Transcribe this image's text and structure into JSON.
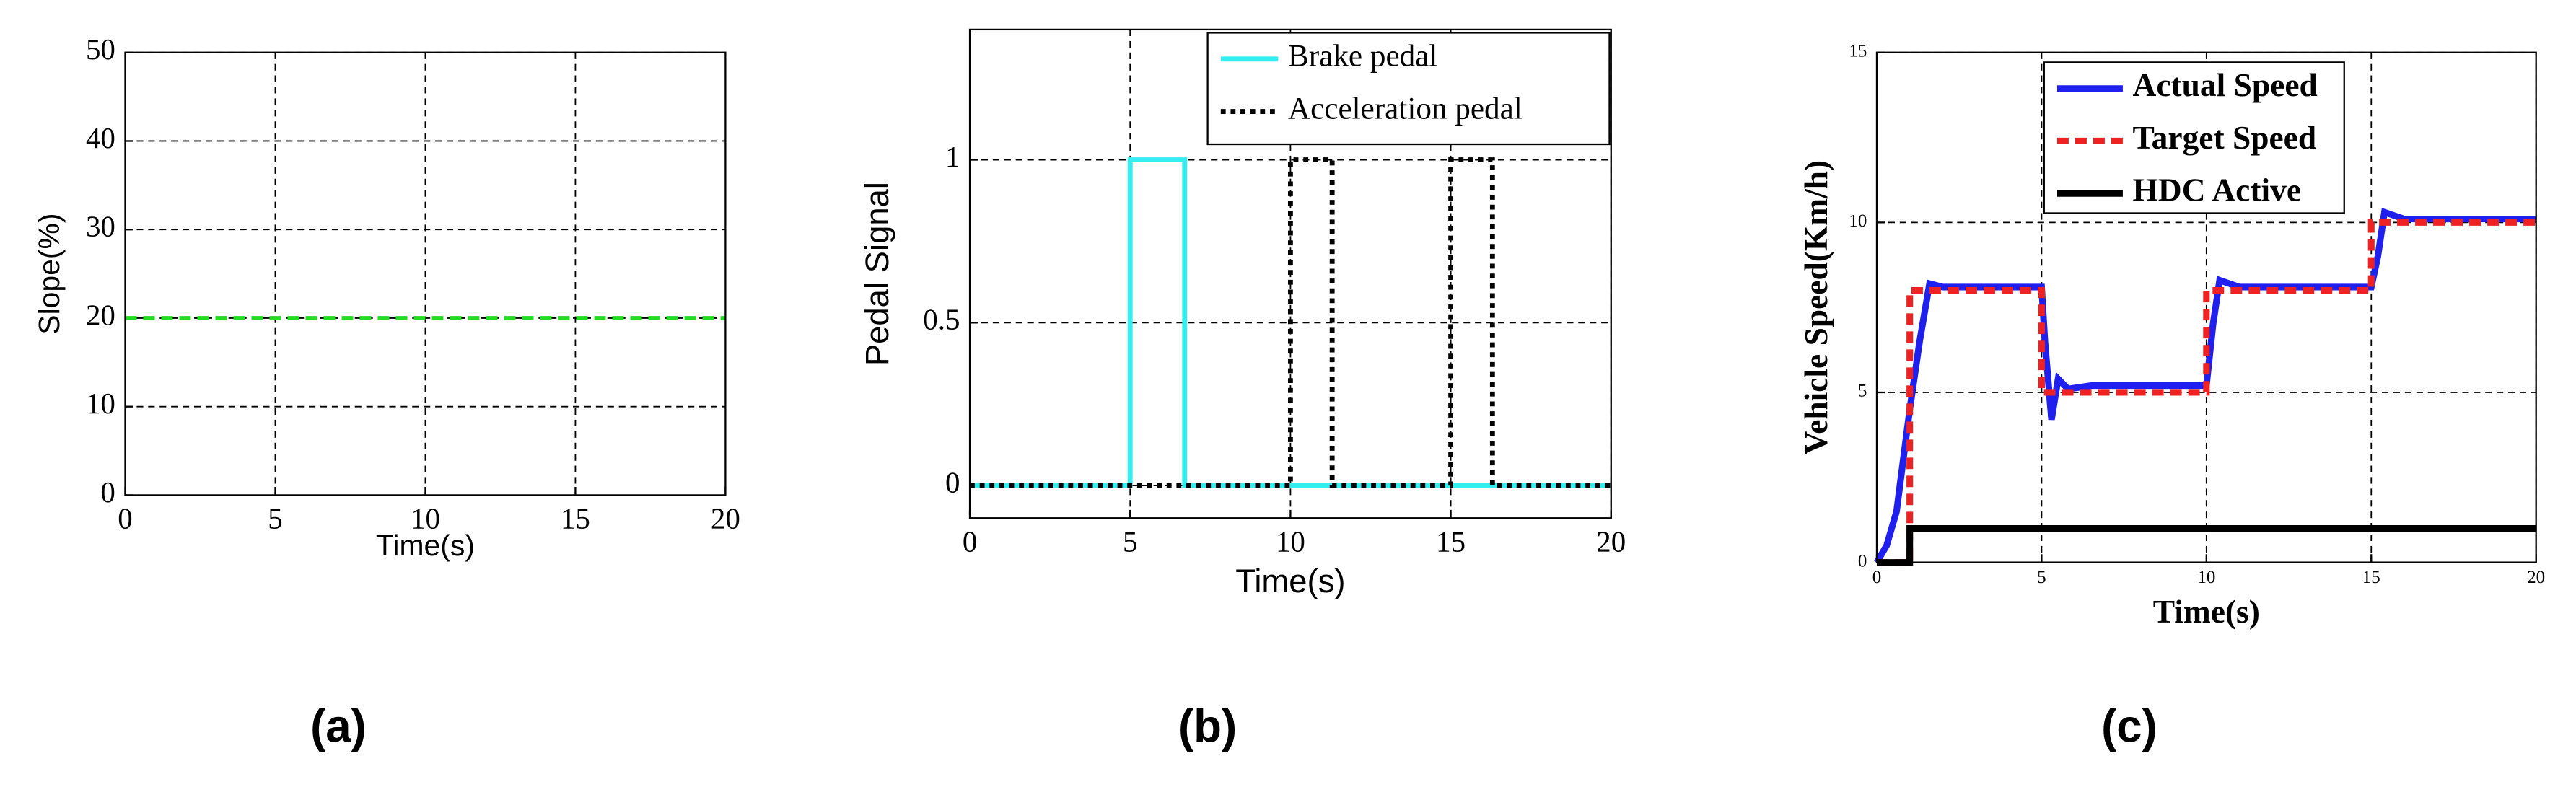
{
  "chart_data": [
    {
      "type": "line",
      "panel_label": "(a)",
      "xlabel": "Time(s)",
      "ylabel": "Slope(%)",
      "xlim": [
        0,
        20
      ],
      "ylim": [
        0,
        50
      ],
      "xticks": [
        0,
        5,
        10,
        15,
        20
      ],
      "yticks": [
        0,
        10,
        20,
        30,
        40,
        50
      ],
      "grid": true,
      "series": [
        {
          "color": "#22dd22",
          "style": "dashed",
          "x": [
            0,
            20
          ],
          "values": [
            20,
            20
          ]
        }
      ]
    },
    {
      "type": "line",
      "panel_label": "(b)",
      "xlabel": "Time(s)",
      "ylabel": "Pedal Signal",
      "xlim": [
        0,
        20
      ],
      "ylim": [
        -0.1,
        1.4
      ],
      "xticks": [
        0,
        5,
        10,
        15,
        20
      ],
      "yticks": [
        0,
        0.5,
        1
      ],
      "grid": true,
      "legend": "upper right",
      "series": [
        {
          "name": "Brake pedal",
          "color": "#33eeee",
          "style": "solid",
          "x": [
            0,
            5,
            5,
            6.7,
            6.7,
            20
          ],
          "values": [
            0,
            0,
            1,
            1,
            0,
            0
          ]
        },
        {
          "name": "Acceleration pedal",
          "color": "#000000",
          "style": "dotted",
          "x": [
            0,
            10,
            10,
            11.3,
            11.3,
            15,
            15,
            16.3,
            16.3,
            20
          ],
          "values": [
            0,
            0,
            1,
            1,
            0,
            0,
            1,
            1,
            0,
            0
          ]
        }
      ]
    },
    {
      "type": "line",
      "panel_label": "(c)",
      "xlabel": "Time(s)",
      "ylabel": "Vehicle Speed(Km/h)",
      "xlim": [
        0,
        20
      ],
      "ylim": [
        0,
        15
      ],
      "xticks": [
        0,
        5,
        10,
        15,
        20
      ],
      "yticks": [
        0,
        5,
        10,
        15
      ],
      "grid": true,
      "legend": "upper center",
      "series": [
        {
          "name": "Actual Speed",
          "color": "#1f1fee",
          "style": "solid",
          "x": [
            0,
            0.3,
            0.6,
            1,
            1.3,
            1.6,
            2,
            5,
            5.1,
            5.3,
            5.5,
            5.8,
            6.5,
            10,
            10.2,
            10.4,
            11,
            15,
            15.2,
            15.4,
            16,
            20
          ],
          "values": [
            0,
            0.5,
            1.5,
            4.5,
            6.5,
            8.2,
            8.1,
            8.1,
            6.5,
            4.2,
            5.4,
            5.1,
            5.2,
            5.2,
            7,
            8.3,
            8.1,
            8.1,
            9,
            10.3,
            10.1,
            10.1
          ]
        },
        {
          "name": "Target Speed",
          "color": "#ee2222",
          "style": "dashed",
          "x": [
            0,
            1,
            1,
            5,
            5,
            10,
            10,
            15,
            15,
            20
          ],
          "values": [
            0,
            0,
            8,
            8,
            5,
            5,
            8,
            8,
            10,
            10
          ]
        },
        {
          "name": "HDC Active",
          "color": "#000000",
          "style": "solid",
          "x": [
            0,
            1,
            1,
            20
          ],
          "values": [
            0,
            0,
            1,
            1
          ]
        }
      ]
    }
  ]
}
